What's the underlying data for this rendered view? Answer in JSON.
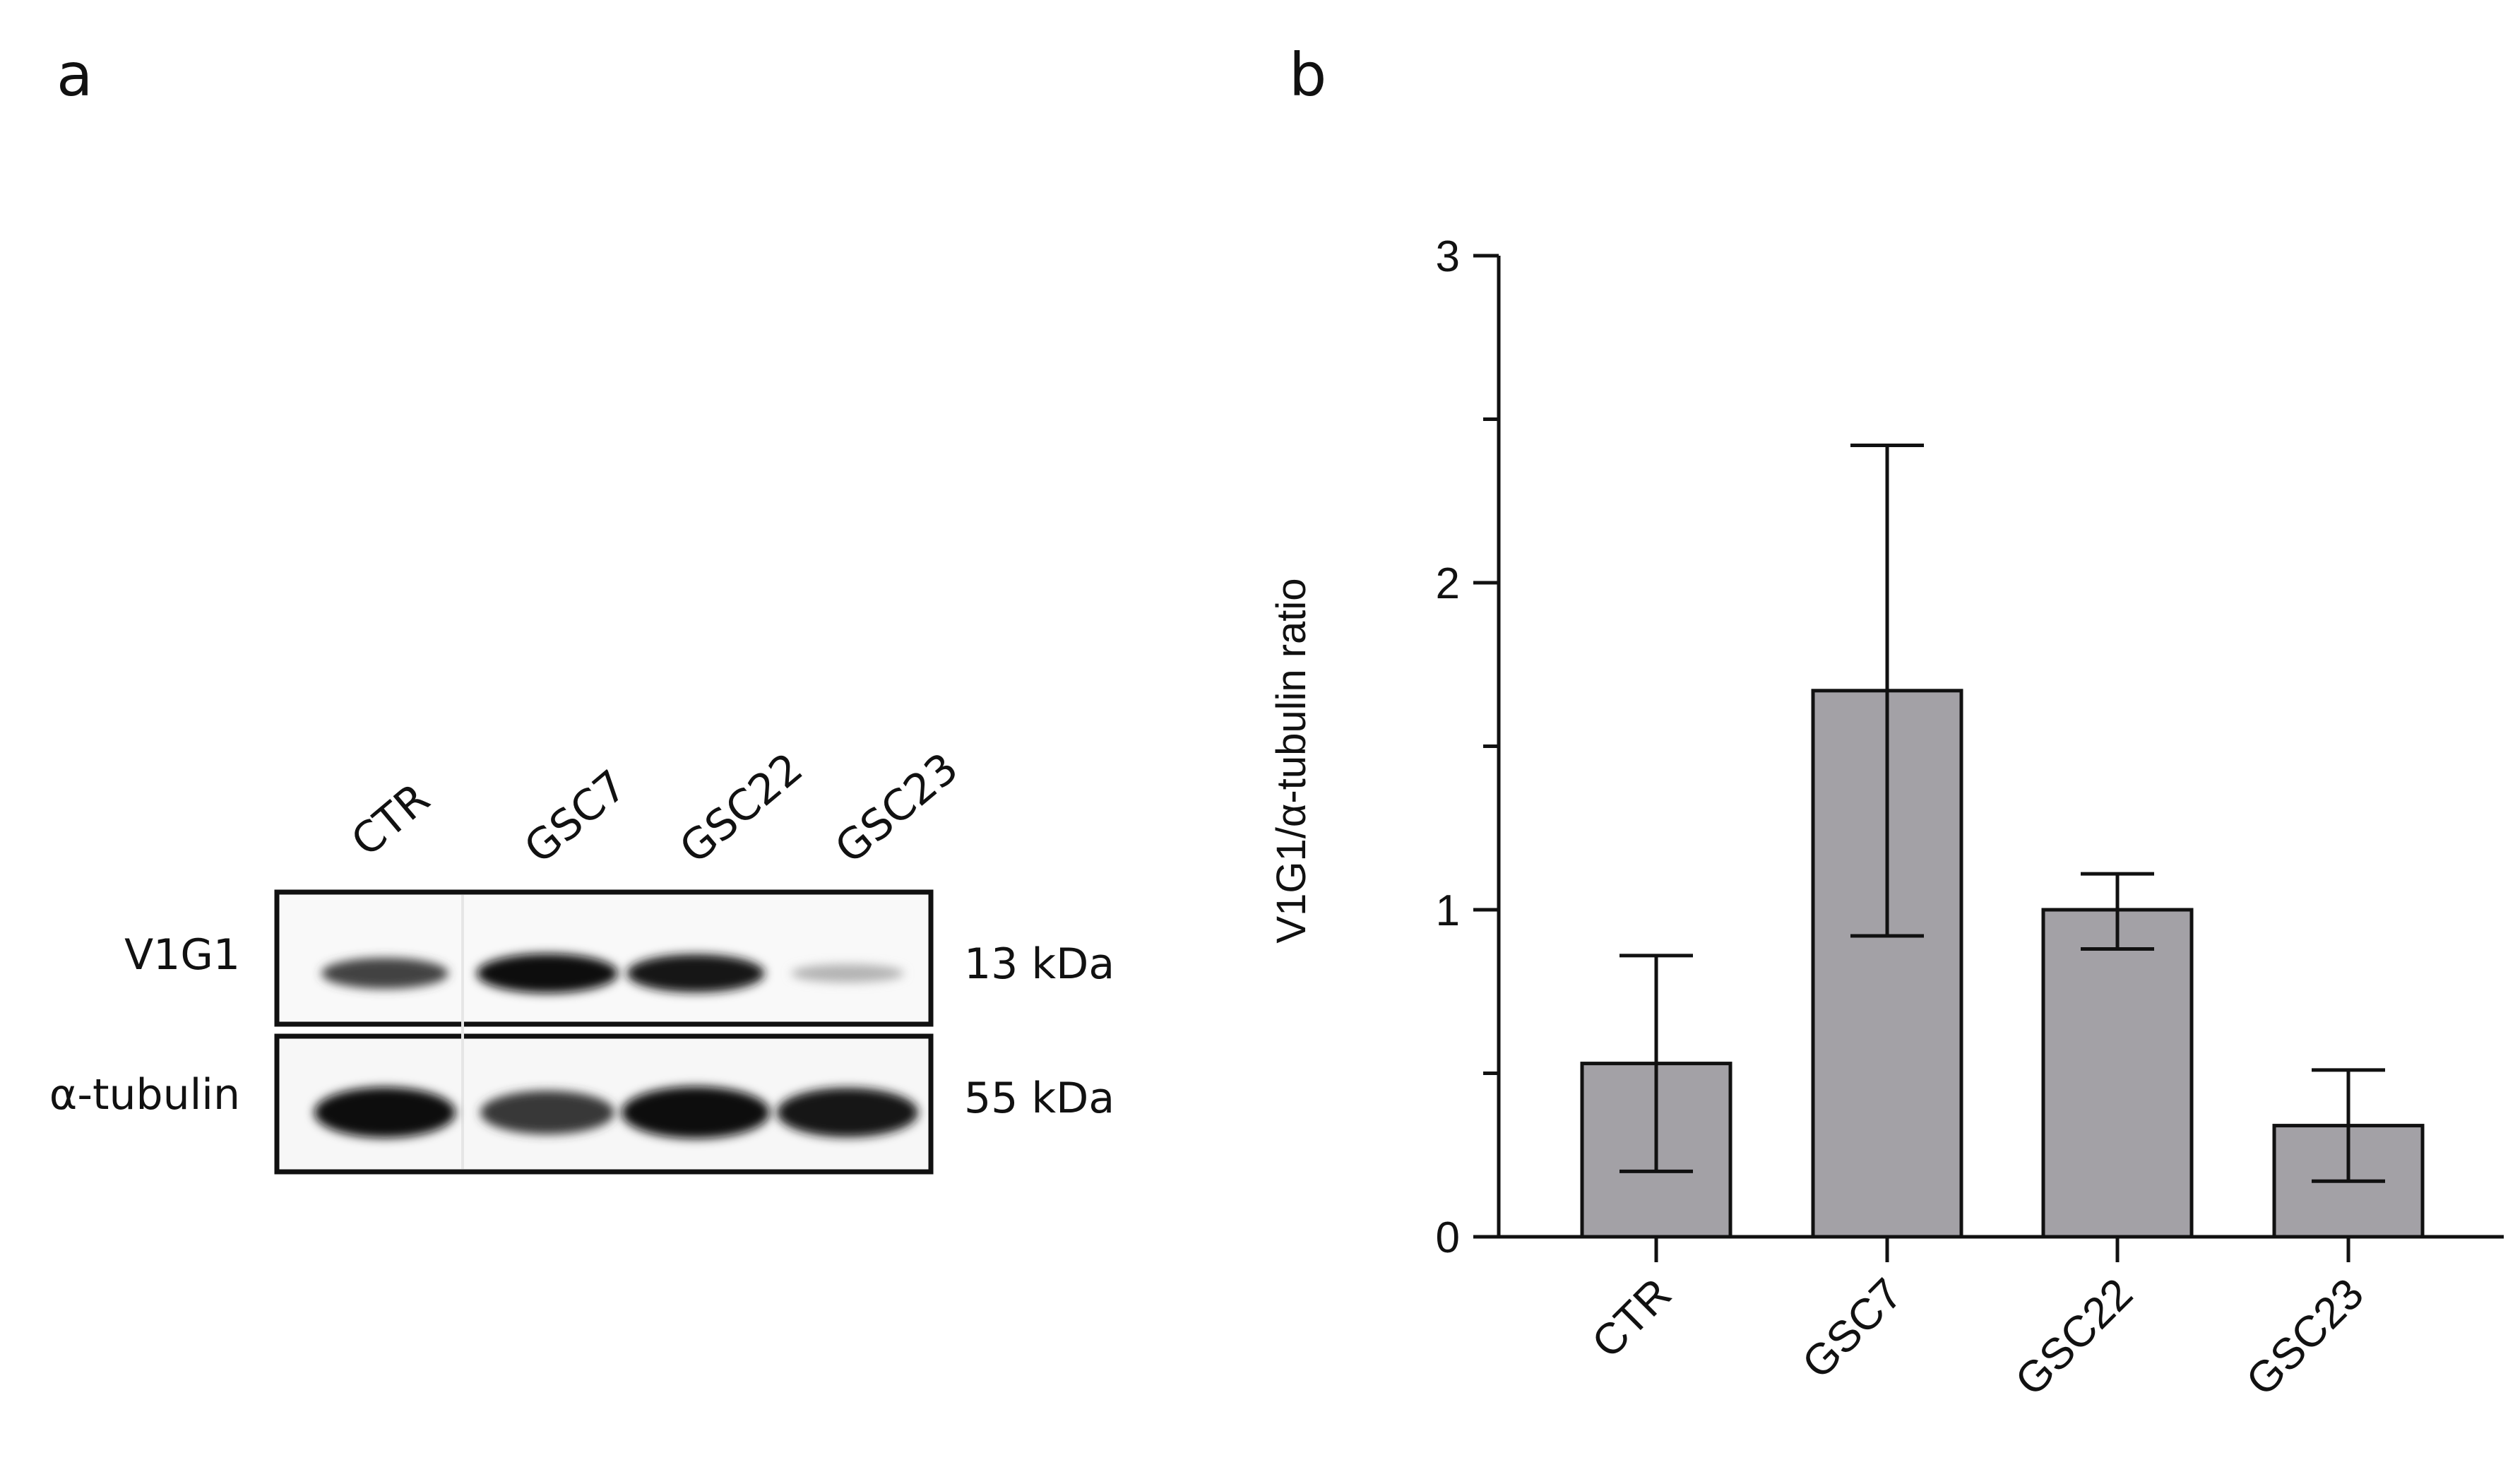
{
  "panels": {
    "a_label": "a",
    "b_label": "b"
  },
  "blot": {
    "lanes": [
      "CTR",
      "GSC7",
      "GSC22",
      "GSC23"
    ],
    "rows": [
      {
        "label": "V1G1",
        "size": "13 kDa",
        "intensity": [
          0.75,
          1.0,
          0.95,
          0.25
        ]
      },
      {
        "label": "α-tubulin",
        "size": "55 kDa",
        "intensity": [
          1.0,
          0.8,
          1.0,
          0.95
        ]
      }
    ]
  },
  "chart_data": {
    "type": "bar",
    "categories": [
      "CTR",
      "GSC7",
      "GSC22",
      "GSC23"
    ],
    "values": [
      0.53,
      1.67,
      1.0,
      0.34
    ],
    "error_low": [
      0.2,
      0.92,
      0.88,
      0.17
    ],
    "error_high": [
      0.86,
      2.42,
      1.11,
      0.51
    ],
    "ylabel": "V1G1/α-tubulin ratio",
    "xlabel": "",
    "ylim": [
      0,
      3
    ],
    "yticks": [
      "0",
      "1",
      "2",
      "3"
    ],
    "bar_color": "#a3a1a6",
    "grid": false
  }
}
